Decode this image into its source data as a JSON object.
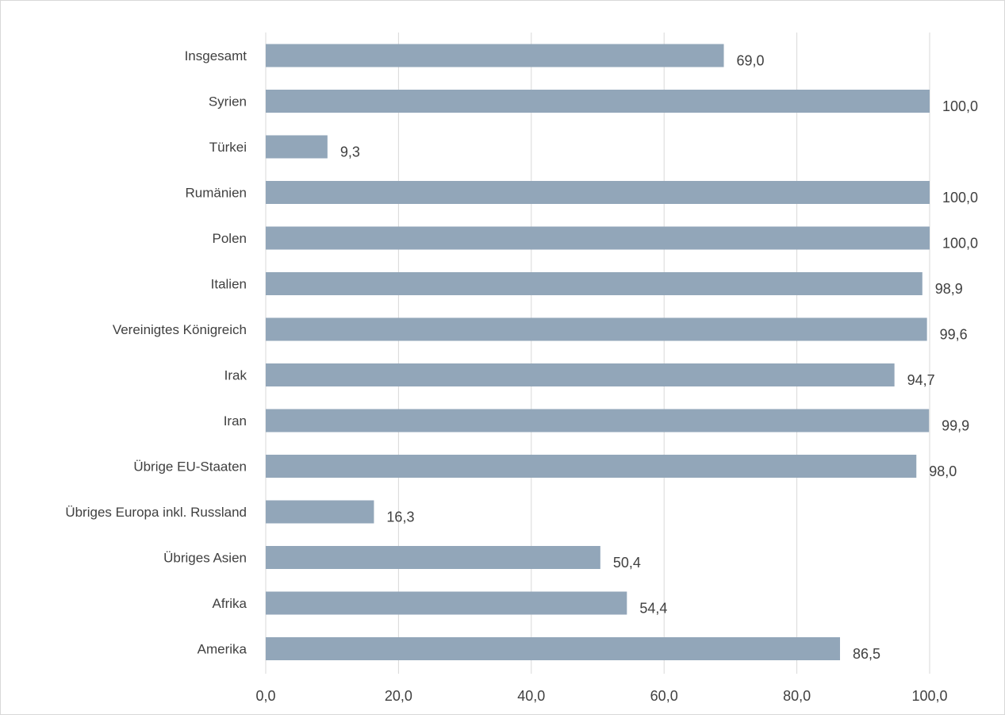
{
  "chart_data": {
    "type": "bar",
    "orientation": "horizontal",
    "title": "",
    "xlabel": "",
    "ylabel": "",
    "categories": [
      "Insgesamt",
      "Syrien",
      "Türkei",
      "Rumänien",
      "Polen",
      "Italien",
      "Vereinigtes Königreich",
      "Irak",
      "Iran",
      "Übrige EU-Staaten",
      "Übriges Europa inkl. Russland",
      "Übriges Asien",
      "Afrika",
      "Amerika"
    ],
    "values": [
      69.0,
      100.0,
      9.3,
      100.0,
      100.0,
      98.9,
      99.6,
      94.7,
      99.9,
      98.0,
      16.3,
      50.4,
      54.4,
      86.5
    ],
    "value_labels": [
      "69,0",
      "100,0",
      "9,3",
      "100,0",
      "100,0",
      "98,9",
      "99,6",
      "94,7",
      "99,9",
      "98,0",
      "16,3",
      "50,4",
      "54,4",
      "86,5"
    ],
    "xlim": [
      0,
      100
    ],
    "ticks": [
      0,
      20,
      40,
      60,
      80,
      100
    ],
    "tick_labels": [
      "0,0",
      "20,0",
      "40,0",
      "60,0",
      "80,0",
      "100,0"
    ],
    "grid": "vertical",
    "legend": "none",
    "bar_color": "#92a6b9",
    "gridline_color": "#d9d9d9",
    "text_color": "#404040"
  }
}
